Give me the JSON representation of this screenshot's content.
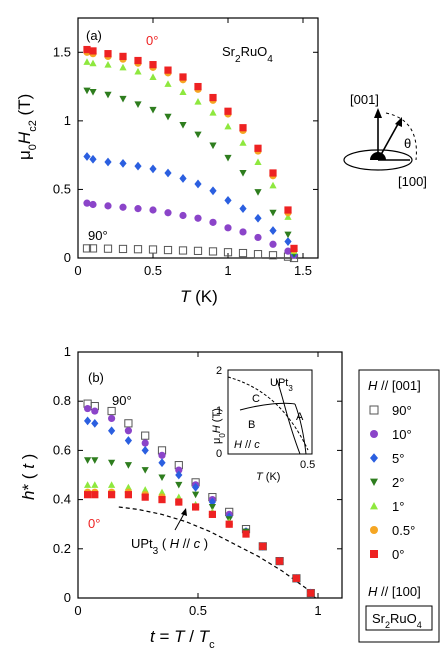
{
  "chart_data": [
    {
      "id": "a",
      "type": "scatter",
      "panel_label": "(a)",
      "material": "Sr2RuO4",
      "xlabel": "T (K)",
      "ylabel": "μ0Hc2 (T)",
      "xlim": [
        0,
        1.6
      ],
      "ylim": [
        0,
        1.75
      ],
      "xticks": [
        "0",
        "0.5",
        "1",
        "1.5"
      ],
      "yticks": [
        "0",
        "0.5",
        "1",
        "1.5"
      ],
      "annotations": {
        "top": "0°",
        "bottom": "90°"
      },
      "series": [
        {
          "name": "90°",
          "marker": "open-square",
          "color": "#555555",
          "x": [
            0.06,
            0.1,
            0.2,
            0.3,
            0.4,
            0.5,
            0.6,
            0.7,
            0.8,
            0.9,
            1.0,
            1.1,
            1.2,
            1.3,
            1.4,
            1.44
          ],
          "y": [
            0.07,
            0.07,
            0.068,
            0.066,
            0.064,
            0.062,
            0.058,
            0.055,
            0.052,
            0.048,
            0.042,
            0.036,
            0.028,
            0.02,
            0.01,
            0.0
          ]
        },
        {
          "name": "10°",
          "marker": "circle",
          "color": "#8b44c9",
          "x": [
            0.06,
            0.1,
            0.2,
            0.3,
            0.4,
            0.5,
            0.6,
            0.7,
            0.8,
            0.9,
            1.0,
            1.1,
            1.2,
            1.3,
            1.4,
            1.44
          ],
          "y": [
            0.4,
            0.39,
            0.38,
            0.37,
            0.36,
            0.35,
            0.33,
            0.31,
            0.29,
            0.26,
            0.22,
            0.19,
            0.15,
            0.1,
            0.05,
            0.02
          ]
        },
        {
          "name": "5°",
          "marker": "diamond",
          "color": "#2b5fe0",
          "x": [
            0.06,
            0.1,
            0.2,
            0.3,
            0.4,
            0.5,
            0.6,
            0.7,
            0.8,
            0.9,
            1.0,
            1.1,
            1.2,
            1.3,
            1.4,
            1.44
          ],
          "y": [
            0.74,
            0.72,
            0.7,
            0.69,
            0.67,
            0.65,
            0.62,
            0.58,
            0.54,
            0.49,
            0.42,
            0.36,
            0.29,
            0.2,
            0.12,
            0.03
          ]
        },
        {
          "name": "2°",
          "marker": "triangle-down",
          "color": "#2e7d1e",
          "x": [
            0.06,
            0.1,
            0.2,
            0.3,
            0.4,
            0.5,
            0.6,
            0.7,
            0.8,
            0.9,
            1.0,
            1.1,
            1.2,
            1.3,
            1.4,
            1.44
          ],
          "y": [
            1.22,
            1.21,
            1.19,
            1.16,
            1.12,
            1.08,
            1.03,
            0.97,
            0.9,
            0.82,
            0.73,
            0.62,
            0.48,
            0.33,
            0.17,
            0.03
          ]
        },
        {
          "name": "1°",
          "marker": "triangle-up",
          "color": "#8ee83e",
          "x": [
            0.06,
            0.1,
            0.2,
            0.3,
            0.4,
            0.5,
            0.6,
            0.7,
            0.8,
            0.9,
            1.0,
            1.1,
            1.2,
            1.3,
            1.4,
            1.44
          ],
          "y": [
            1.43,
            1.42,
            1.41,
            1.39,
            1.36,
            1.32,
            1.27,
            1.21,
            1.14,
            1.06,
            0.96,
            0.84,
            0.7,
            0.53,
            0.3,
            0.05
          ]
        },
        {
          "name": "0.5°",
          "marker": "circle",
          "color": "#f5a623",
          "x": [
            0.06,
            0.1,
            0.2,
            0.3,
            0.4,
            0.5,
            0.6,
            0.7,
            0.8,
            0.9,
            1.0,
            1.1,
            1.2,
            1.3,
            1.4,
            1.44
          ],
          "y": [
            1.5,
            1.49,
            1.47,
            1.45,
            1.42,
            1.39,
            1.35,
            1.3,
            1.23,
            1.15,
            1.05,
            0.93,
            0.78,
            0.6,
            0.33,
            0.06
          ]
        },
        {
          "name": "0°",
          "marker": "square",
          "color": "#ee2222",
          "x": [
            0.06,
            0.1,
            0.2,
            0.3,
            0.4,
            0.5,
            0.6,
            0.7,
            0.8,
            0.9,
            1.0,
            1.1,
            1.2,
            1.3,
            1.4,
            1.44
          ],
          "y": [
            1.52,
            1.51,
            1.49,
            1.47,
            1.44,
            1.41,
            1.37,
            1.32,
            1.25,
            1.17,
            1.07,
            0.95,
            0.8,
            0.62,
            0.35,
            0.07
          ]
        }
      ]
    },
    {
      "id": "b",
      "type": "scatter",
      "panel_label": "(b)",
      "xlabel": "t = T / Tc",
      "ylabel": "h*(t)",
      "xlim": [
        0,
        1.1
      ],
      "ylim": [
        0,
        1.0
      ],
      "xticks": [
        "0",
        "0.5",
        "1"
      ],
      "yticks": [
        "0",
        "0.2",
        "0.4",
        "0.6",
        "0.8",
        "1"
      ],
      "annotations": {
        "top": "90°",
        "bottom": "0°",
        "curve": "UPt3 ( H // c )"
      },
      "series": [
        {
          "name": "90°",
          "marker": "open-square",
          "color": "#555555",
          "x": [
            0.04,
            0.07,
            0.14,
            0.21,
            0.28,
            0.35,
            0.42,
            0.49,
            0.56,
            0.63,
            0.7,
            0.77,
            0.84,
            0.91,
            0.97
          ],
          "y": [
            0.79,
            0.78,
            0.76,
            0.71,
            0.66,
            0.6,
            0.54,
            0.47,
            0.41,
            0.35,
            0.28,
            0.21,
            0.15,
            0.08,
            0.02
          ]
        },
        {
          "name": "10°",
          "marker": "circle",
          "color": "#8b44c9",
          "x": [
            0.04,
            0.07,
            0.14,
            0.21,
            0.28,
            0.35,
            0.42,
            0.49,
            0.56,
            0.63,
            0.7,
            0.77,
            0.84,
            0.91,
            0.97
          ],
          "y": [
            0.77,
            0.76,
            0.73,
            0.68,
            0.63,
            0.58,
            0.52,
            0.46,
            0.4,
            0.34,
            0.27,
            0.21,
            0.15,
            0.08,
            0.02
          ]
        },
        {
          "name": "5°",
          "marker": "diamond",
          "color": "#2b5fe0",
          "x": [
            0.04,
            0.07,
            0.14,
            0.21,
            0.28,
            0.35,
            0.42,
            0.49,
            0.56,
            0.63,
            0.7,
            0.77,
            0.84,
            0.91,
            0.97
          ],
          "y": [
            0.72,
            0.71,
            0.68,
            0.64,
            0.6,
            0.55,
            0.5,
            0.45,
            0.39,
            0.33,
            0.27,
            0.21,
            0.15,
            0.08,
            0.02
          ]
        },
        {
          "name": "2°",
          "marker": "triangle-down",
          "color": "#2e7d1e",
          "x": [
            0.04,
            0.07,
            0.14,
            0.21,
            0.28,
            0.35,
            0.42,
            0.49,
            0.56,
            0.63,
            0.7,
            0.77,
            0.84,
            0.91,
            0.97
          ],
          "y": [
            0.56,
            0.56,
            0.55,
            0.54,
            0.52,
            0.49,
            0.46,
            0.42,
            0.37,
            0.32,
            0.27,
            0.21,
            0.15,
            0.08,
            0.02
          ]
        },
        {
          "name": "1°",
          "marker": "triangle-up",
          "color": "#8ee83e",
          "x": [
            0.04,
            0.07,
            0.14,
            0.21,
            0.28,
            0.35,
            0.42,
            0.49,
            0.56,
            0.63,
            0.7,
            0.77,
            0.84,
            0.91,
            0.97
          ],
          "y": [
            0.46,
            0.46,
            0.46,
            0.45,
            0.44,
            0.43,
            0.41,
            0.38,
            0.35,
            0.31,
            0.26,
            0.21,
            0.15,
            0.08,
            0.02
          ]
        },
        {
          "name": "0.5°",
          "marker": "circle",
          "color": "#f5a623",
          "x": [
            0.04,
            0.07,
            0.14,
            0.21,
            0.28,
            0.35,
            0.42,
            0.49,
            0.56,
            0.63,
            0.7,
            0.77,
            0.84,
            0.91,
            0.97
          ],
          "y": [
            0.43,
            0.43,
            0.43,
            0.43,
            0.42,
            0.41,
            0.39,
            0.37,
            0.34,
            0.3,
            0.26,
            0.21,
            0.15,
            0.08,
            0.02
          ]
        },
        {
          "name": "0°",
          "marker": "square",
          "color": "#ee2222",
          "x": [
            0.04,
            0.07,
            0.14,
            0.21,
            0.28,
            0.35,
            0.42,
            0.49,
            0.56,
            0.63,
            0.7,
            0.77,
            0.84,
            0.91,
            0.97
          ],
          "y": [
            0.42,
            0.42,
            0.42,
            0.42,
            0.41,
            0.4,
            0.39,
            0.37,
            0.34,
            0.3,
            0.26,
            0.21,
            0.15,
            0.08,
            0.02
          ]
        },
        {
          "name": "UPt3 ( H // c )",
          "marker": "dashed-line",
          "color": "#000000",
          "x": [
            0.17,
            0.25,
            0.35,
            0.45,
            0.55,
            0.65,
            0.75,
            0.85,
            0.95,
            0.99
          ],
          "y": [
            0.37,
            0.36,
            0.34,
            0.31,
            0.27,
            0.22,
            0.17,
            0.11,
            0.04,
            0.0
          ]
        }
      ]
    }
  ],
  "inset": {
    "material": "UPt3",
    "ylabel": "μ0H (T)",
    "xlabel": "T (K)",
    "xticks": [
      "0",
      "0.5"
    ],
    "yticks": [
      "0",
      "1",
      "2"
    ],
    "phases": [
      "A",
      "B",
      "C"
    ],
    "direction": "H // c"
  },
  "geometry": {
    "axis_up": "[001]",
    "axis_right": "[100]",
    "angle": "θ"
  },
  "legend": {
    "header": "H // [001]",
    "footer": "H // [100]",
    "material": "Sr2RuO4"
  }
}
